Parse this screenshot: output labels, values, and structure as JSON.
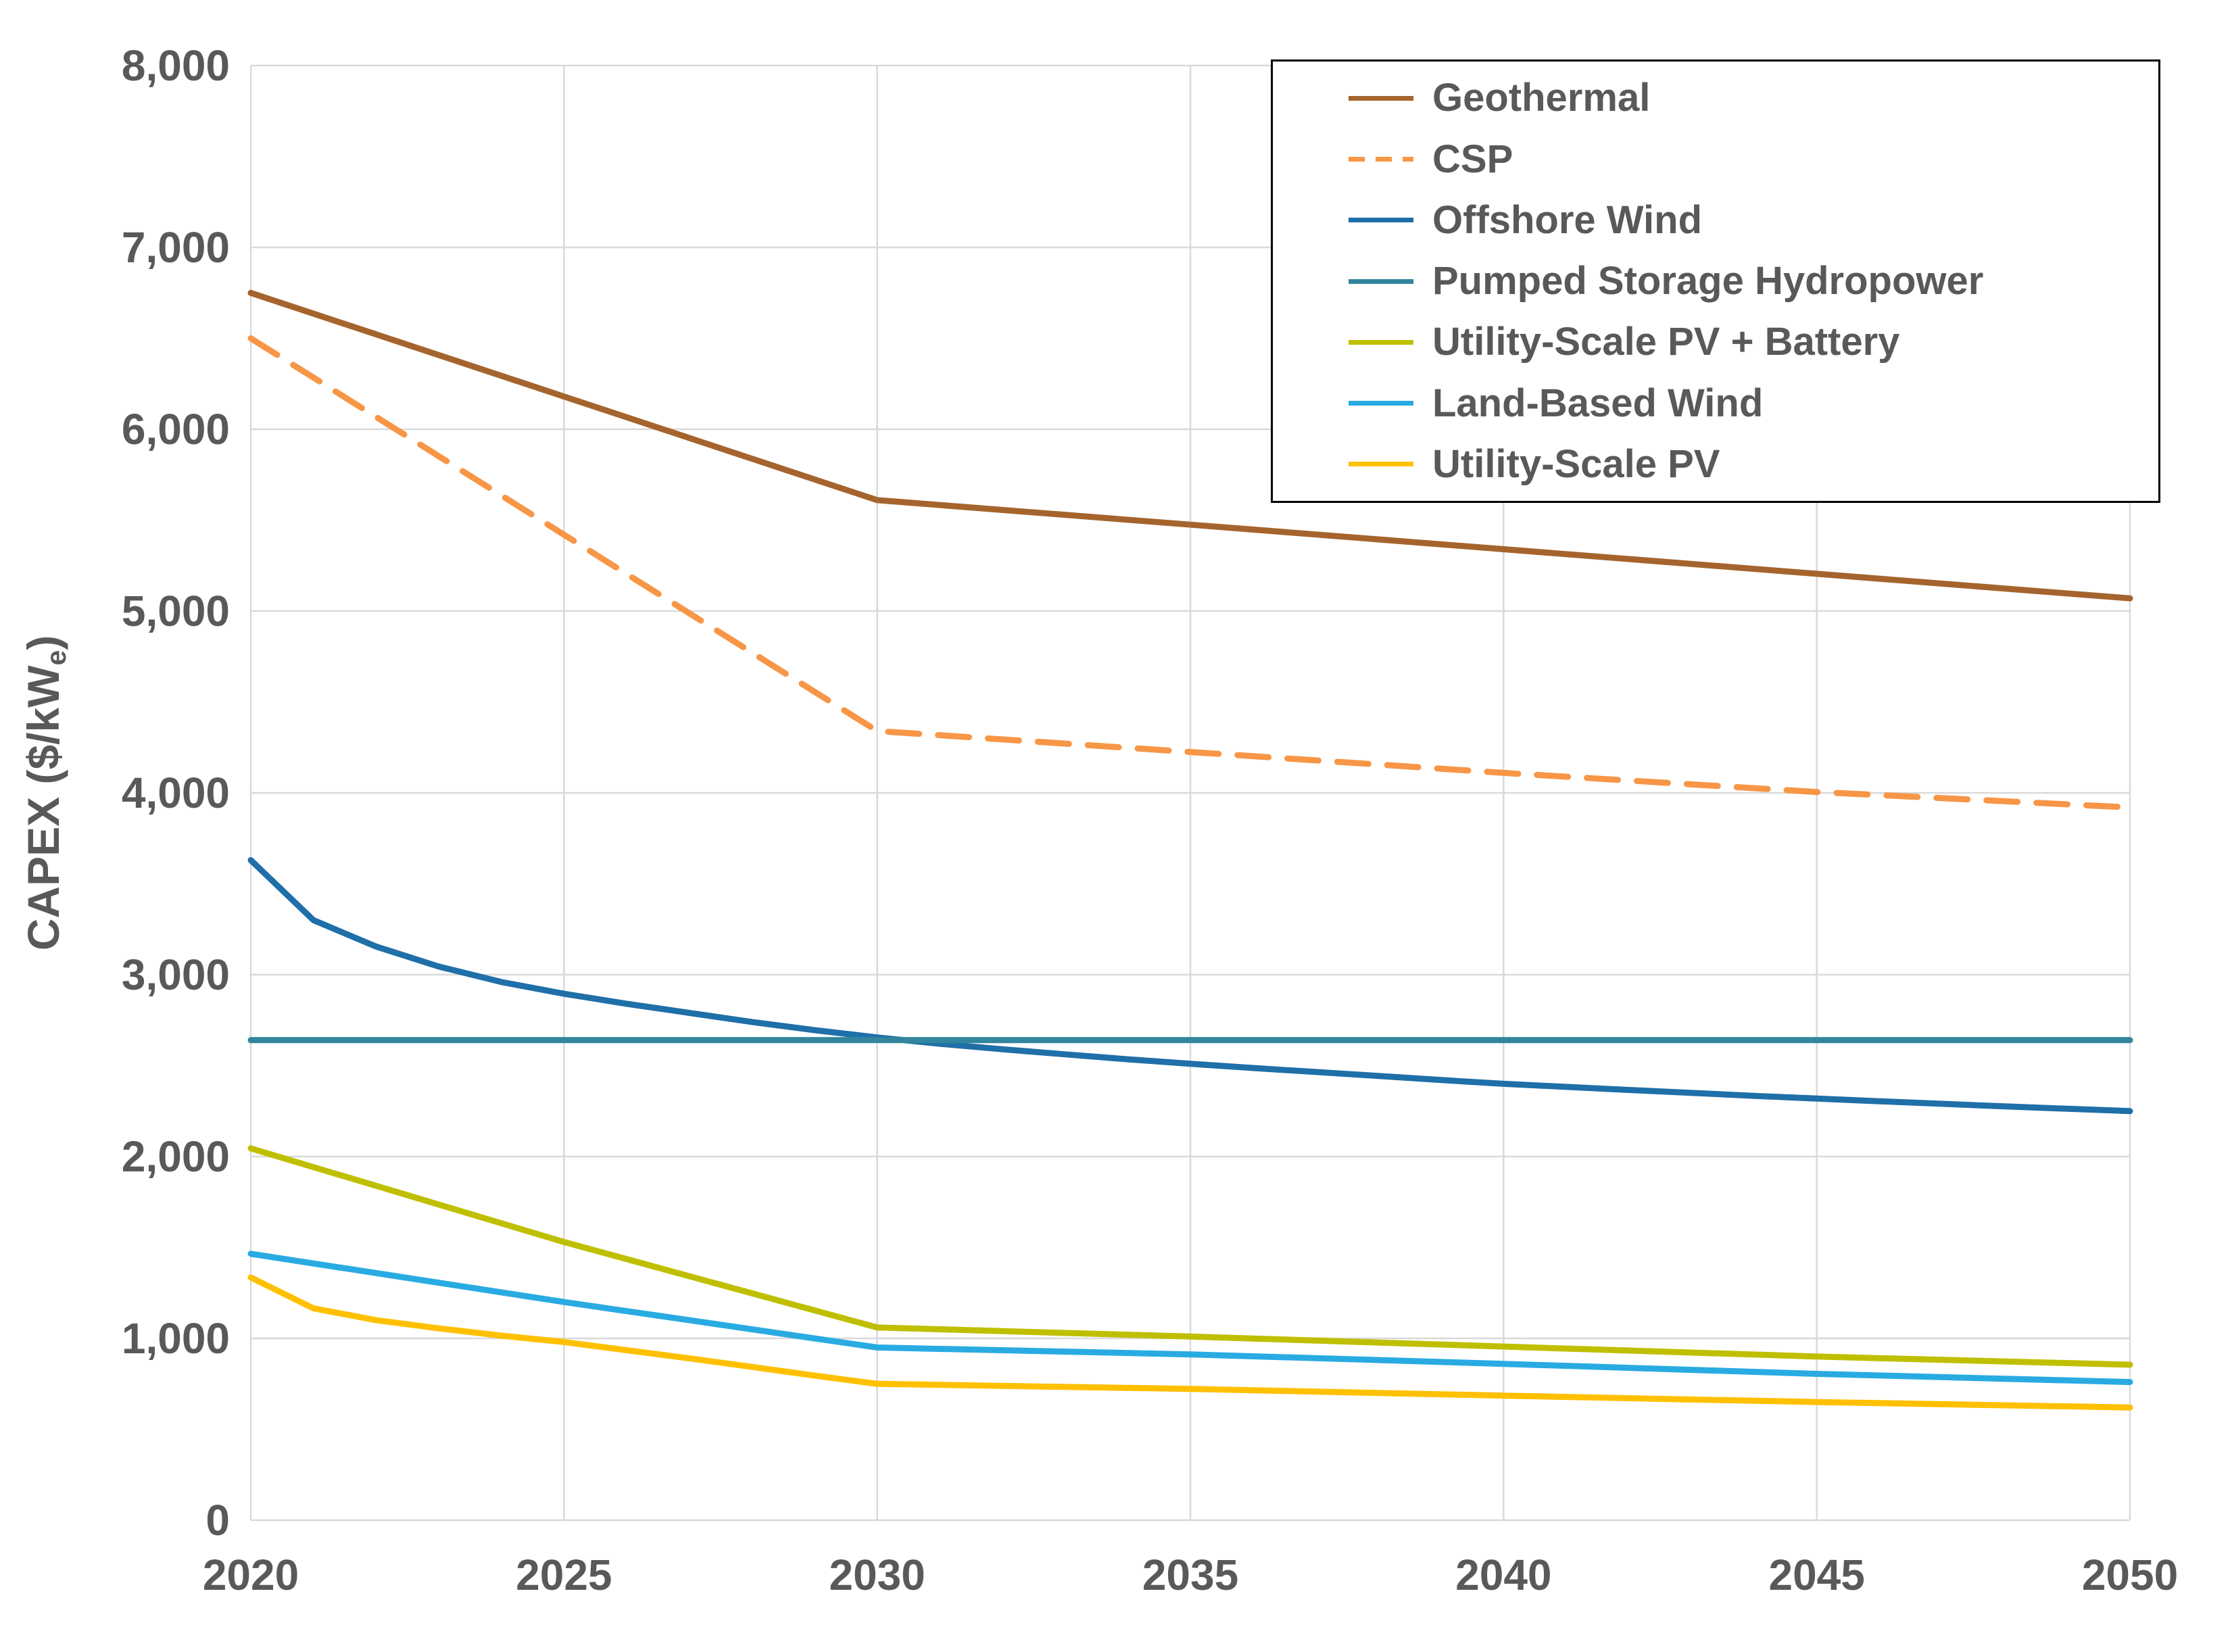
{
  "chart_data": {
    "type": "line",
    "title": "",
    "xlabel": "",
    "ylabel": "CAPEX ($/kWe)",
    "xlim": [
      2020,
      2050
    ],
    "ylim": [
      0,
      8000
    ],
    "grid": true,
    "legend_position": "top-right-inside",
    "x_axis": {
      "tick_values": [
        2020,
        2025,
        2030,
        2035,
        2040,
        2045,
        2050
      ],
      "tick_labels": [
        "2020",
        "2025",
        "2030",
        "2035",
        "2040",
        "2045",
        "2050"
      ]
    },
    "y_axis": {
      "title_prefix": "CAPEX ($/kW",
      "title_sub": "e",
      "title_suffix": ")",
      "tick_values": [
        0,
        1000,
        2000,
        3000,
        4000,
        5000,
        6000,
        7000,
        8000
      ],
      "tick_labels": [
        "0",
        "1,000",
        "2,000",
        "3,000",
        "4,000",
        "5,000",
        "6,000",
        "7,000",
        "8,000"
      ]
    },
    "grid_color": "#d9d9d9",
    "text_color": "#595959",
    "series": [
      {
        "name": "Geothermal",
        "color": "#a5642d",
        "dashed": false,
        "points": [
          [
            2020,
            6750
          ],
          [
            2025,
            6180
          ],
          [
            2030,
            5610
          ],
          [
            2035,
            5475
          ],
          [
            2040,
            5340
          ],
          [
            2045,
            5205
          ],
          [
            2050,
            5070
          ]
        ]
      },
      {
        "name": "CSP",
        "color": "#f79646",
        "dashed": true,
        "points": [
          [
            2020,
            6500
          ],
          [
            2025,
            5420
          ],
          [
            2030,
            4340
          ],
          [
            2035,
            4225
          ],
          [
            2040,
            4110
          ],
          [
            2045,
            4005
          ],
          [
            2050,
            3920
          ]
        ]
      },
      {
        "name": "Offshore Wind",
        "color": "#1f6fa8",
        "dashed": false,
        "points": [
          [
            2020,
            3630
          ],
          [
            2021,
            3300
          ],
          [
            2022,
            3155
          ],
          [
            2023,
            3045
          ],
          [
            2024,
            2960
          ],
          [
            2025,
            2895
          ],
          [
            2026,
            2840
          ],
          [
            2027,
            2790
          ],
          [
            2028,
            2740
          ],
          [
            2029,
            2695
          ],
          [
            2030,
            2655
          ],
          [
            2031,
            2620
          ],
          [
            2032,
            2590
          ],
          [
            2033,
            2562
          ],
          [
            2034,
            2535
          ],
          [
            2035,
            2510
          ],
          [
            2036,
            2487
          ],
          [
            2037,
            2465
          ],
          [
            2038,
            2443
          ],
          [
            2039,
            2421
          ],
          [
            2040,
            2400
          ],
          [
            2042,
            2366
          ],
          [
            2044,
            2334
          ],
          [
            2046,
            2304
          ],
          [
            2048,
            2276
          ],
          [
            2050,
            2250
          ]
        ]
      },
      {
        "name": "Pumped Storage Hydropower",
        "color": "#31859c",
        "dashed": false,
        "points": [
          [
            2020,
            2640
          ],
          [
            2050,
            2640
          ]
        ]
      },
      {
        "name": "Utility-Scale PV + Battery",
        "color": "#bfbf00",
        "dashed": false,
        "points": [
          [
            2020,
            2045
          ],
          [
            2025,
            1530
          ],
          [
            2030,
            1060
          ],
          [
            2035,
            1010
          ],
          [
            2040,
            955
          ],
          [
            2045,
            900
          ],
          [
            2050,
            855
          ]
        ]
      },
      {
        "name": "Land-Based Wind",
        "color": "#29abe2",
        "dashed": false,
        "points": [
          [
            2020,
            1465
          ],
          [
            2025,
            1200
          ],
          [
            2030,
            950
          ],
          [
            2035,
            912
          ],
          [
            2040,
            860
          ],
          [
            2045,
            805
          ],
          [
            2050,
            760
          ]
        ]
      },
      {
        "name": "Utility-Scale PV",
        "color": "#ffc000",
        "dashed": false,
        "points": [
          [
            2020,
            1335
          ],
          [
            2021,
            1165
          ],
          [
            2022,
            1100
          ],
          [
            2023,
            1055
          ],
          [
            2024,
            1015
          ],
          [
            2025,
            980
          ],
          [
            2026,
            935
          ],
          [
            2027,
            890
          ],
          [
            2028,
            843
          ],
          [
            2029,
            795
          ],
          [
            2030,
            750
          ],
          [
            2035,
            722
          ],
          [
            2040,
            685
          ],
          [
            2045,
            650
          ],
          [
            2050,
            620
          ]
        ]
      }
    ]
  }
}
